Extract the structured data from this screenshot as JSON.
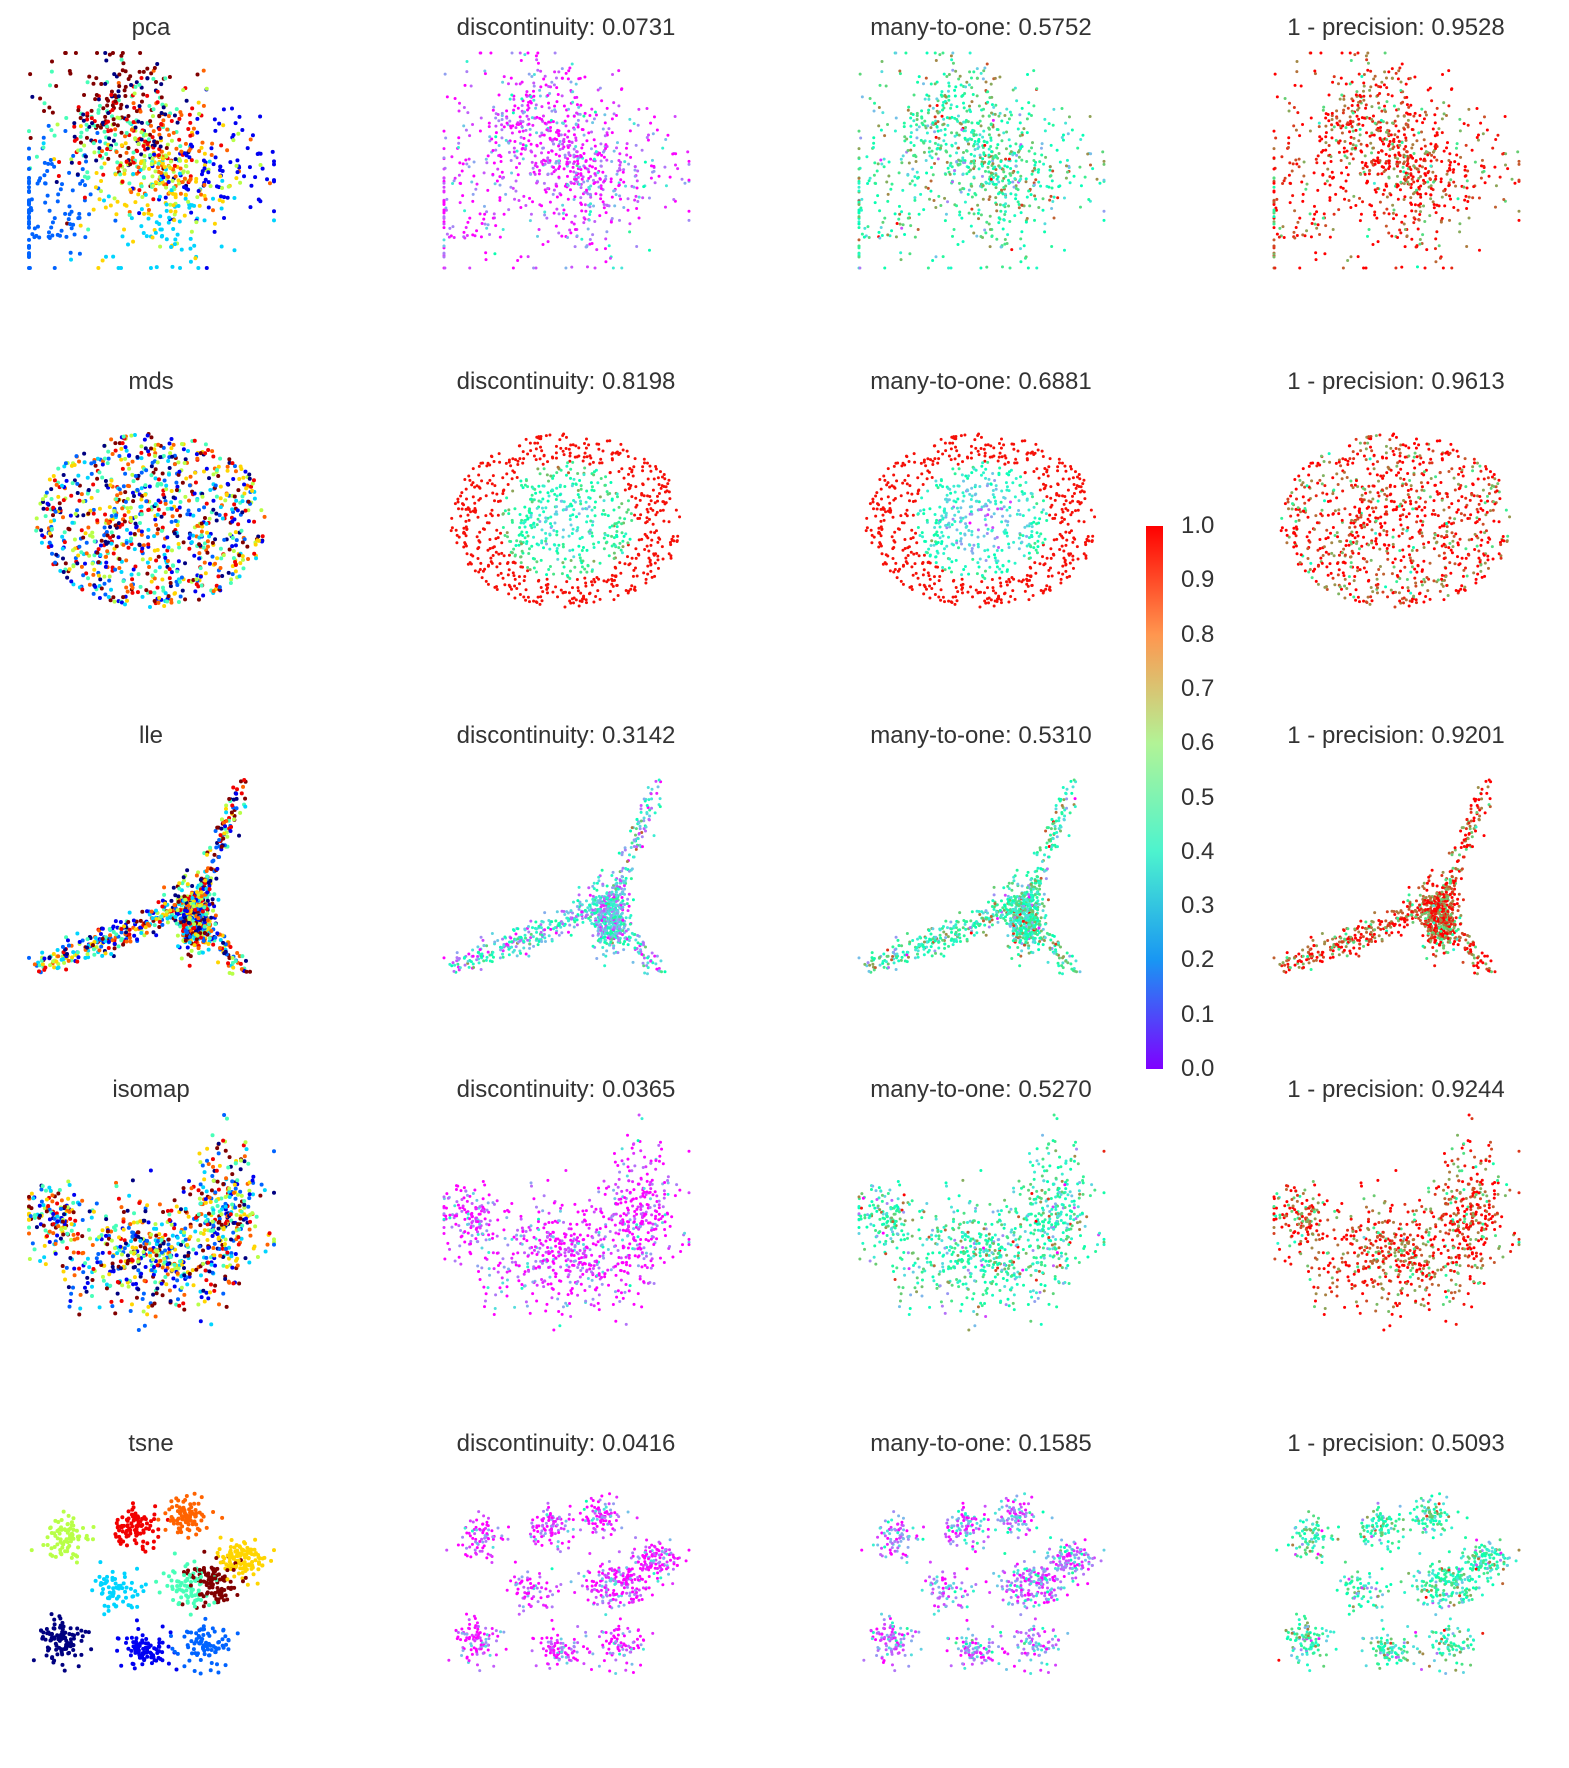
{
  "chart_data": {
    "type": "scatter",
    "title": "",
    "rows": [
      {
        "method": "pca",
        "titles": [
          "pca",
          "discontinuity: 0.0731",
          "many-to-one: 0.5752",
          "1 - precision: 0.9528"
        ],
        "values": [
          null,
          0.0731,
          0.5752,
          0.9528
        ]
      },
      {
        "method": "mds",
        "titles": [
          "mds",
          "discontinuity: 0.8198",
          "many-to-one: 0.6881",
          "1 - precision: 0.9613"
        ],
        "values": [
          null,
          0.8198,
          0.6881,
          0.9613
        ]
      },
      {
        "method": "lle",
        "titles": [
          "lle",
          "discontinuity: 0.3142",
          "many-to-one: 0.5310",
          "1 - precision: 0.9201"
        ],
        "values": [
          null,
          0.3142,
          0.531,
          0.9201
        ]
      },
      {
        "method": "isomap",
        "titles": [
          "isomap",
          "discontinuity: 0.0365",
          "many-to-one: 0.5270",
          "1 - precision: 0.9244"
        ],
        "values": [
          null,
          0.0365,
          0.527,
          0.9244
        ]
      },
      {
        "method": "tsne",
        "titles": [
          "tsne",
          "discontinuity: 0.0416",
          "many-to-one: 0.1585",
          "1 - precision: 0.5093"
        ],
        "values": [
          null,
          0.0416,
          0.1585,
          0.5093
        ]
      }
    ],
    "colorbar": {
      "ticks": [
        "1.0",
        "0.9",
        "0.8",
        "0.7",
        "0.6",
        "0.5",
        "0.4",
        "0.3",
        "0.2",
        "0.1",
        "0.0"
      ],
      "range": [
        0.0,
        1.0
      ],
      "colormap": "rainbow"
    }
  }
}
